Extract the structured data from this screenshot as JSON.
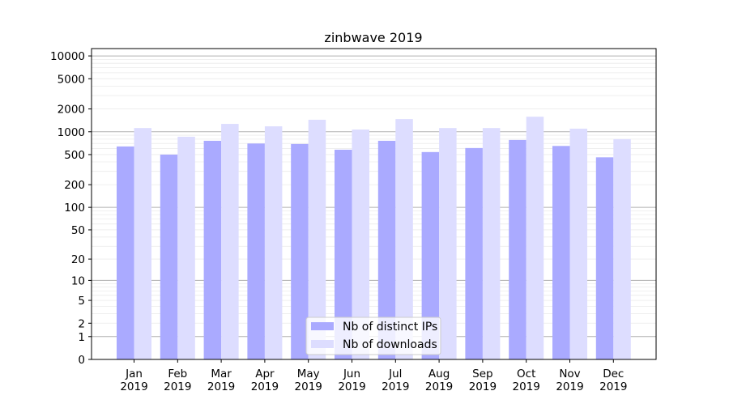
{
  "chart_data": {
    "type": "bar",
    "title": "zinbwave 2019",
    "xlabel": "",
    "ylabel": "",
    "y_scale": "log10(1+y)",
    "ylim": [
      0,
      12500
    ],
    "y_ticks": [
      0,
      1,
      2,
      5,
      10,
      20,
      50,
      100,
      200,
      500,
      1000,
      2000,
      5000,
      10000
    ],
    "grid": "horizontal, major and minor",
    "legend_position": "lower center",
    "categories": [
      [
        "Jan",
        "2019"
      ],
      [
        "Feb",
        "2019"
      ],
      [
        "Mar",
        "2019"
      ],
      [
        "Apr",
        "2019"
      ],
      [
        "May",
        "2019"
      ],
      [
        "Jun",
        "2019"
      ],
      [
        "Jul",
        "2019"
      ],
      [
        "Aug",
        "2019"
      ],
      [
        "Sep",
        "2019"
      ],
      [
        "Oct",
        "2019"
      ],
      [
        "Nov",
        "2019"
      ],
      [
        "Dec",
        "2019"
      ]
    ],
    "series": [
      {
        "name": "Nb of distinct IPs",
        "color": "#aaaaff",
        "values": [
          640,
          500,
          760,
          700,
          690,
          580,
          760,
          540,
          610,
          780,
          650,
          460
        ]
      },
      {
        "name": "Nb of downloads",
        "color": "#ddddff",
        "values": [
          1120,
          860,
          1270,
          1180,
          1440,
          1070,
          1470,
          1120,
          1120,
          1580,
          1100,
          800
        ]
      }
    ]
  }
}
